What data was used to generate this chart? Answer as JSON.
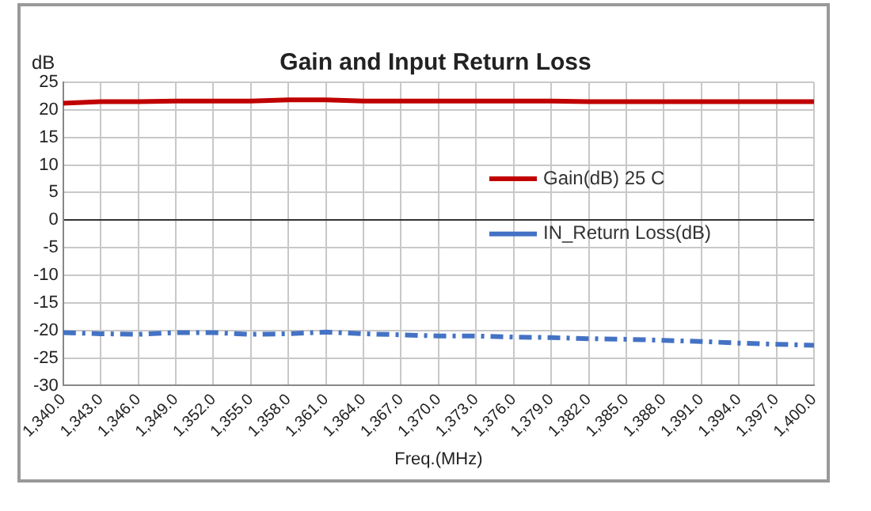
{
  "chart_data": {
    "type": "line",
    "title": "Gain and Input Return Loss",
    "xlabel": "Freq.(MHz)",
    "ylabel": "dB",
    "x": [
      1340,
      1343,
      1346,
      1349,
      1352,
      1355,
      1358,
      1361,
      1364,
      1367,
      1370,
      1373,
      1376,
      1379,
      1382,
      1385,
      1388,
      1391,
      1394,
      1397,
      1400
    ],
    "series": [
      {
        "name": "Gain(dB) 25 C",
        "color": "#c00000",
        "line_style": "solid",
        "values": [
          21.2,
          21.5,
          21.5,
          21.6,
          21.6,
          21.6,
          21.8,
          21.8,
          21.6,
          21.6,
          21.6,
          21.6,
          21.6,
          21.6,
          21.5,
          21.5,
          21.5,
          21.5,
          21.5,
          21.5,
          21.5
        ]
      },
      {
        "name": "IN_Return Loss(dB)",
        "color": "#4472c4",
        "line_style": "dashed",
        "values": [
          -20.4,
          -20.6,
          -20.7,
          -20.4,
          -20.4,
          -20.7,
          -20.6,
          -20.3,
          -20.6,
          -20.8,
          -21.0,
          -21.0,
          -21.2,
          -21.3,
          -21.5,
          -21.6,
          -21.8,
          -22.0,
          -22.3,
          -22.5,
          -22.7
        ]
      }
    ],
    "xlim": [
      1340,
      1400
    ],
    "xticks": [
      {
        "value": 1340,
        "label": "1,340.0"
      },
      {
        "value": 1343,
        "label": "1,343.0"
      },
      {
        "value": 1346,
        "label": "1,346.0"
      },
      {
        "value": 1349,
        "label": "1,349.0"
      },
      {
        "value": 1352,
        "label": "1,352.0"
      },
      {
        "value": 1355,
        "label": "1,355.0"
      },
      {
        "value": 1358,
        "label": "1,358.0"
      },
      {
        "value": 1361,
        "label": "1,361.0"
      },
      {
        "value": 1364,
        "label": "1,364.0"
      },
      {
        "value": 1367,
        "label": "1,367.0"
      },
      {
        "value": 1370,
        "label": "1,370.0"
      },
      {
        "value": 1373,
        "label": "1,373.0"
      },
      {
        "value": 1376,
        "label": "1,376.0"
      },
      {
        "value": 1379,
        "label": "1,379.0"
      },
      {
        "value": 1382,
        "label": "1,382.0"
      },
      {
        "value": 1385,
        "label": "1,385.0"
      },
      {
        "value": 1388,
        "label": "1,388.0"
      },
      {
        "value": 1391,
        "label": "1,391.0"
      },
      {
        "value": 1394,
        "label": "1,394.0"
      },
      {
        "value": 1397,
        "label": "1,397.0"
      },
      {
        "value": 1400,
        "label": "1,400.0"
      }
    ],
    "ylim": [
      -30,
      25
    ],
    "yticks": [
      -30,
      -25,
      -20,
      -15,
      -10,
      -5,
      0,
      5,
      10,
      15,
      20,
      25
    ],
    "grid": true,
    "legend": "right",
    "marker": "none"
  }
}
